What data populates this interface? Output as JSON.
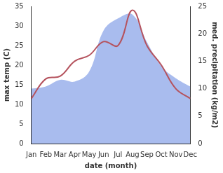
{
  "chart_data": {
    "type": "line",
    "x_label": "date (month)",
    "y_label": "max temp (C)",
    "y2_label": "med. precipitation (kg/m2)",
    "categories": [
      "Jan",
      "Feb",
      "Mar",
      "Apr",
      "May",
      "Jun",
      "Jul",
      "Aug",
      "Sep",
      "Oct",
      "Nov",
      "Dec"
    ],
    "series": [
      {
        "type": "area",
        "axis": "y2",
        "color": "#a9bcee",
        "values": [
          10,
          10.4,
          11.6,
          11.3,
          13.1,
          20.6,
          22.8,
          23.5,
          18.5,
          14.1,
          11.9,
          10.4
        ]
      },
      {
        "type": "line",
        "axis": "y",
        "color": "#b5535e",
        "values": [
          11.5,
          16.5,
          17.2,
          21,
          22.5,
          26,
          25,
          34,
          25,
          20,
          14,
          11.5
        ]
      }
    ],
    "ylim": [
      0,
      35
    ],
    "yticks": [
      0,
      5,
      10,
      15,
      20,
      25,
      30,
      35
    ],
    "y2lim": [
      0,
      25
    ],
    "y2ticks": [
      0,
      5,
      10,
      15,
      20,
      25
    ],
    "grid": false
  }
}
